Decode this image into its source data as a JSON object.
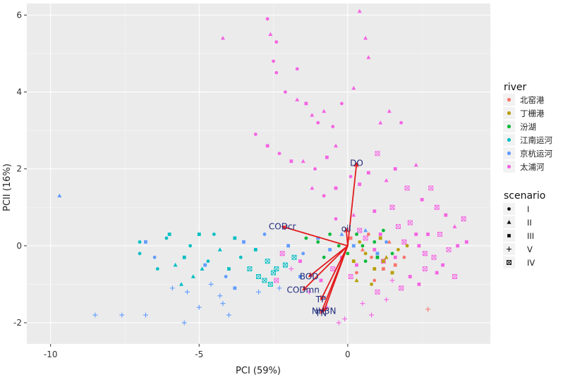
{
  "chart_data": {
    "type": "scatter",
    "xlabel": "PCI (59%)",
    "ylabel": "PCII (16%)",
    "xlim": [
      -10.8,
      4.8
    ],
    "ylim": [
      -2.55,
      6.3
    ],
    "x_ticks": [
      -10,
      -5,
      0
    ],
    "x_tick_labels": [
      "-10",
      "-5",
      "0"
    ],
    "y_ticks": [
      -2,
      0,
      2,
      4,
      6
    ],
    "y_tick_labels": [
      "-2",
      "0",
      "2",
      "4",
      "6"
    ],
    "grid": true,
    "background": "#ebebeb",
    "legend_placement": "right",
    "river_legend": {
      "title": "river",
      "items": [
        {
          "label": "北窑港",
          "color": "#f8766d"
        },
        {
          "label": "丁栅港",
          "color": "#b79f00"
        },
        {
          "label": "汾湖",
          "color": "#00ba38"
        },
        {
          "label": "江南运河",
          "color": "#00bfc4"
        },
        {
          "label": "京杭运河",
          "color": "#619cff"
        },
        {
          "label": "太浦河",
          "color": "#f564e3"
        }
      ]
    },
    "scenario_legend": {
      "title": "scenario",
      "items": [
        {
          "label": "I",
          "shape": "circle"
        },
        {
          "label": "II",
          "shape": "triangle"
        },
        {
          "label": "III",
          "shape": "square"
        },
        {
          "label": "V",
          "shape": "plus"
        },
        {
          "label": "IV",
          "shape": "boxed-cross"
        }
      ]
    },
    "loadings": [
      {
        "label": "DO",
        "x": 0.3,
        "y": 2.15
      },
      {
        "label": "CODcr",
        "x": -2.2,
        "y": 0.5
      },
      {
        "label": "oil",
        "x": -0.05,
        "y": 0.45
      },
      {
        "label": "BOD",
        "x": -1.3,
        "y": -0.8
      },
      {
        "label": "CODmn",
        "x": -1.5,
        "y": -1.15
      },
      {
        "label": "TP",
        "x": -0.9,
        "y": -1.4
      },
      {
        "label": "NH3N",
        "x": -0.8,
        "y": -1.7
      },
      {
        "label": "TN",
        "x": -0.9,
        "y": -1.75
      }
    ],
    "loading_color": "#e31a1c",
    "loading_label_color": "#1f2a7a",
    "series": [
      {
        "river": "太浦河",
        "points": [
          [
            -2.7,
            5.9,
            0
          ],
          [
            -4.2,
            5.4,
            1
          ],
          [
            -2.6,
            5.5,
            1
          ],
          [
            -2.4,
            5.3,
            0
          ],
          [
            -2.5,
            4.8,
            0
          ],
          [
            -2.4,
            4.5,
            0
          ],
          [
            -1.7,
            4.6,
            0
          ],
          [
            -2.1,
            4.0,
            0
          ],
          [
            -1.7,
            3.8,
            1
          ],
          [
            -1.4,
            3.7,
            2
          ],
          [
            -1.2,
            3.4,
            1
          ],
          [
            -1.0,
            3.2,
            0
          ],
          [
            -0.8,
            3.5,
            1
          ],
          [
            -0.5,
            3.1,
            0
          ],
          [
            0.4,
            6.1,
            1
          ],
          [
            0.6,
            5.4,
            1
          ],
          [
            0.7,
            4.9,
            1
          ],
          [
            1.4,
            3.5,
            1
          ],
          [
            1.8,
            3.2,
            0
          ],
          [
            1.1,
            3.2,
            1
          ],
          [
            0.2,
            4.1,
            1
          ],
          [
            -0.2,
            3.7,
            0
          ],
          [
            -3.1,
            2.9,
            0
          ],
          [
            -2.3,
            2.4,
            0
          ],
          [
            -1.9,
            2.2,
            2
          ],
          [
            -1.5,
            2.2,
            1
          ],
          [
            -1.1,
            2.0,
            0
          ],
          [
            -0.7,
            2.3,
            2
          ],
          [
            -0.4,
            2.6,
            1
          ],
          [
            -2.7,
            2.6,
            2
          ],
          [
            -1.2,
            1.5,
            1
          ],
          [
            -0.8,
            1.3,
            0
          ],
          [
            -0.4,
            1.5,
            2
          ],
          [
            0.1,
            1.8,
            0
          ],
          [
            0.4,
            1.6,
            2
          ],
          [
            0.7,
            1.9,
            2
          ],
          [
            1.0,
            2.4,
            4
          ],
          [
            1.3,
            1.7,
            1
          ],
          [
            1.6,
            2.0,
            2
          ],
          [
            2.0,
            1.5,
            4
          ],
          [
            2.3,
            2.1,
            1
          ],
          [
            2.5,
            1.2,
            2
          ],
          [
            2.8,
            1.5,
            4
          ],
          [
            3.0,
            1.0,
            4
          ],
          [
            3.3,
            0.8,
            2
          ],
          [
            3.6,
            0.5,
            1
          ],
          [
            3.9,
            0.7,
            4
          ],
          [
            4.0,
            0.1,
            2
          ],
          [
            3.4,
            -0.1,
            4
          ],
          [
            3.2,
            -0.5,
            2
          ],
          [
            3.6,
            -0.8,
            4
          ],
          [
            3.0,
            -0.7,
            2
          ],
          [
            2.6,
            -0.2,
            4
          ],
          [
            2.3,
            0.3,
            2
          ],
          [
            1.9,
            0.1,
            4
          ],
          [
            1.6,
            -0.3,
            2
          ],
          [
            1.2,
            -0.4,
            4
          ],
          [
            0.9,
            -0.1,
            2
          ],
          [
            0.6,
            0.2,
            4
          ],
          [
            0.3,
            -0.5,
            2
          ],
          [
            0.1,
            -0.8,
            4
          ],
          [
            -0.2,
            -0.3,
            2
          ],
          [
            -0.5,
            -0.6,
            4
          ],
          [
            -0.9,
            -0.9,
            2
          ],
          [
            -1.3,
            -1.2,
            3
          ],
          [
            -0.7,
            -1.6,
            3
          ],
          [
            -0.3,
            -2.0,
            3
          ],
          [
            0.8,
            -1.8,
            3
          ],
          [
            1.3,
            -1.4,
            3
          ],
          [
            1.8,
            -1.1,
            4
          ],
          [
            2.1,
            -0.8,
            2
          ],
          [
            2.6,
            -0.6,
            4
          ],
          [
            2.4,
            -1.0,
            2
          ],
          [
            1.5,
            -0.9,
            3
          ],
          [
            1.0,
            -1.2,
            4
          ],
          [
            0.5,
            -1.5,
            3
          ],
          [
            -0.1,
            -1.9,
            3
          ],
          [
            -1.9,
            -0.6,
            3
          ],
          [
            -2.2,
            -0.2,
            4
          ],
          [
            -2.4,
            -0.9,
            4
          ],
          [
            -1.6,
            -0.4,
            2
          ],
          [
            -0.4,
            0.7,
            0
          ],
          [
            0.2,
            0.8,
            1
          ],
          [
            0.9,
            0.9,
            2
          ],
          [
            1.5,
            1.0,
            4
          ],
          [
            2.1,
            0.6,
            4
          ],
          [
            2.7,
            0.3,
            2
          ],
          [
            3.1,
            0.3,
            4
          ],
          [
            3.7,
            0.0,
            2
          ],
          [
            0.4,
            0.4,
            4
          ],
          [
            1.1,
            0.3,
            2
          ],
          [
            1.7,
            0.5,
            4
          ],
          [
            2.4,
            0.0,
            2
          ],
          [
            2.9,
            -0.3,
            4
          ]
        ]
      },
      {
        "river": "江南运河",
        "points": [
          [
            -7.0,
            0.1,
            0
          ],
          [
            -7.0,
            -0.2,
            0
          ],
          [
            -6.4,
            -0.6,
            0
          ],
          [
            -6.1,
            0.2,
            0
          ],
          [
            -5.8,
            -0.5,
            1
          ],
          [
            -5.5,
            -0.3,
            2
          ],
          [
            -5.3,
            0.0,
            0
          ],
          [
            -5.0,
            0.3,
            2
          ],
          [
            -4.7,
            -0.4,
            0
          ],
          [
            -4.3,
            -0.1,
            1
          ],
          [
            -4.0,
            -0.6,
            2
          ],
          [
            -3.6,
            -0.3,
            0
          ],
          [
            -3.3,
            -0.6,
            4
          ],
          [
            -3.0,
            -0.8,
            4
          ],
          [
            -2.7,
            -0.4,
            4
          ],
          [
            -2.4,
            -0.6,
            4
          ],
          [
            -2.1,
            -0.5,
            4
          ],
          [
            -1.8,
            -0.3,
            4
          ],
          [
            -3.8,
            0.2,
            2
          ],
          [
            -4.5,
            0.3,
            0
          ],
          [
            -5.2,
            -0.8,
            1
          ],
          [
            -5.6,
            -1.0,
            1
          ],
          [
            -6.0,
            0.3,
            2
          ],
          [
            -4.9,
            -0.6,
            1
          ],
          [
            -3.1,
            -0.1,
            2
          ],
          [
            -2.8,
            -0.9,
            4
          ],
          [
            -2.6,
            -1.0,
            4
          ],
          [
            -2.5,
            -0.7,
            4
          ]
        ]
      },
      {
        "river": "京杭运河",
        "points": [
          [
            -9.7,
            1.3,
            1
          ],
          [
            -8.5,
            -1.8,
            3
          ],
          [
            -7.6,
            -1.8,
            3
          ],
          [
            -6.8,
            -1.8,
            3
          ],
          [
            -5.5,
            -2.0,
            3
          ],
          [
            -5.0,
            -1.6,
            3
          ],
          [
            -4.0,
            -1.8,
            3
          ],
          [
            -4.3,
            -1.3,
            3
          ],
          [
            -3.8,
            -1.1,
            2
          ],
          [
            -4.6,
            -1.0,
            3
          ],
          [
            -5.9,
            -1.1,
            3
          ],
          [
            -5.4,
            -1.2,
            3
          ],
          [
            -6.5,
            -0.3,
            0
          ],
          [
            -6.8,
            0.1,
            2
          ],
          [
            -4.8,
            -0.5,
            2
          ],
          [
            -4.1,
            -0.8,
            0
          ],
          [
            -3.5,
            0.1,
            2
          ],
          [
            -2.8,
            0.3,
            0
          ],
          [
            -2.0,
            0.0,
            2
          ],
          [
            -1.5,
            -0.2,
            0
          ],
          [
            -1.0,
            0.2,
            2
          ],
          [
            -0.6,
            -0.1,
            2
          ],
          [
            -0.2,
            0.3,
            1
          ],
          [
            0.2,
            0.0,
            2
          ],
          [
            0.6,
            0.4,
            1
          ],
          [
            1.0,
            -0.2,
            2
          ],
          [
            1.3,
            0.1,
            0
          ],
          [
            -3.0,
            -1.2,
            3
          ],
          [
            -2.3,
            -1.1,
            3
          ],
          [
            -1.6,
            -0.8,
            2
          ],
          [
            -4.2,
            -1.5,
            3
          ]
        ]
      },
      {
        "river": "北窑港",
        "points": [
          [
            2.7,
            -1.65,
            3
          ],
          [
            0.8,
            -0.3,
            0
          ],
          [
            1.2,
            -0.6,
            2
          ],
          [
            0.5,
            -0.1,
            1
          ],
          [
            0.9,
            -0.9,
            0
          ],
          [
            1.6,
            -0.5,
            2
          ],
          [
            0.3,
            -0.7,
            0
          ],
          [
            1.4,
            0.1,
            1
          ],
          [
            0.1,
            0.2,
            2
          ],
          [
            0.7,
            0.3,
            0
          ],
          [
            1.9,
            -0.3,
            0
          ]
        ]
      },
      {
        "river": "丁栅港",
        "points": [
          [
            0.2,
            -0.4,
            2
          ],
          [
            0.6,
            -0.2,
            0
          ],
          [
            0.9,
            -0.6,
            2
          ],
          [
            1.3,
            -0.3,
            1
          ],
          [
            1.7,
            -0.1,
            0
          ],
          [
            1.1,
            0.2,
            2
          ],
          [
            0.4,
            0.1,
            0
          ],
          [
            1.5,
            -0.7,
            2
          ],
          [
            2.0,
            0.0,
            0
          ],
          [
            0.8,
            -1.0,
            0
          ],
          [
            1.2,
            -0.4,
            2
          ],
          [
            0.3,
            -0.9,
            1
          ]
        ]
      },
      {
        "river": "汾湖",
        "points": [
          [
            -0.6,
            0.3,
            0
          ],
          [
            -0.3,
            0.0,
            0
          ],
          [
            0.0,
            -0.2,
            0
          ],
          [
            0.3,
            0.3,
            0
          ],
          [
            0.6,
            -0.4,
            0
          ],
          [
            0.9,
            0.1,
            0
          ],
          [
            1.2,
            0.4,
            0
          ],
          [
            -1.0,
            0.1,
            0
          ],
          [
            -0.8,
            -0.3,
            0
          ],
          [
            1.5,
            -0.2,
            0
          ],
          [
            0.5,
            0.0,
            0
          ],
          [
            1.0,
            -0.3,
            2
          ],
          [
            -1.4,
            0.2,
            0
          ]
        ]
      }
    ]
  }
}
